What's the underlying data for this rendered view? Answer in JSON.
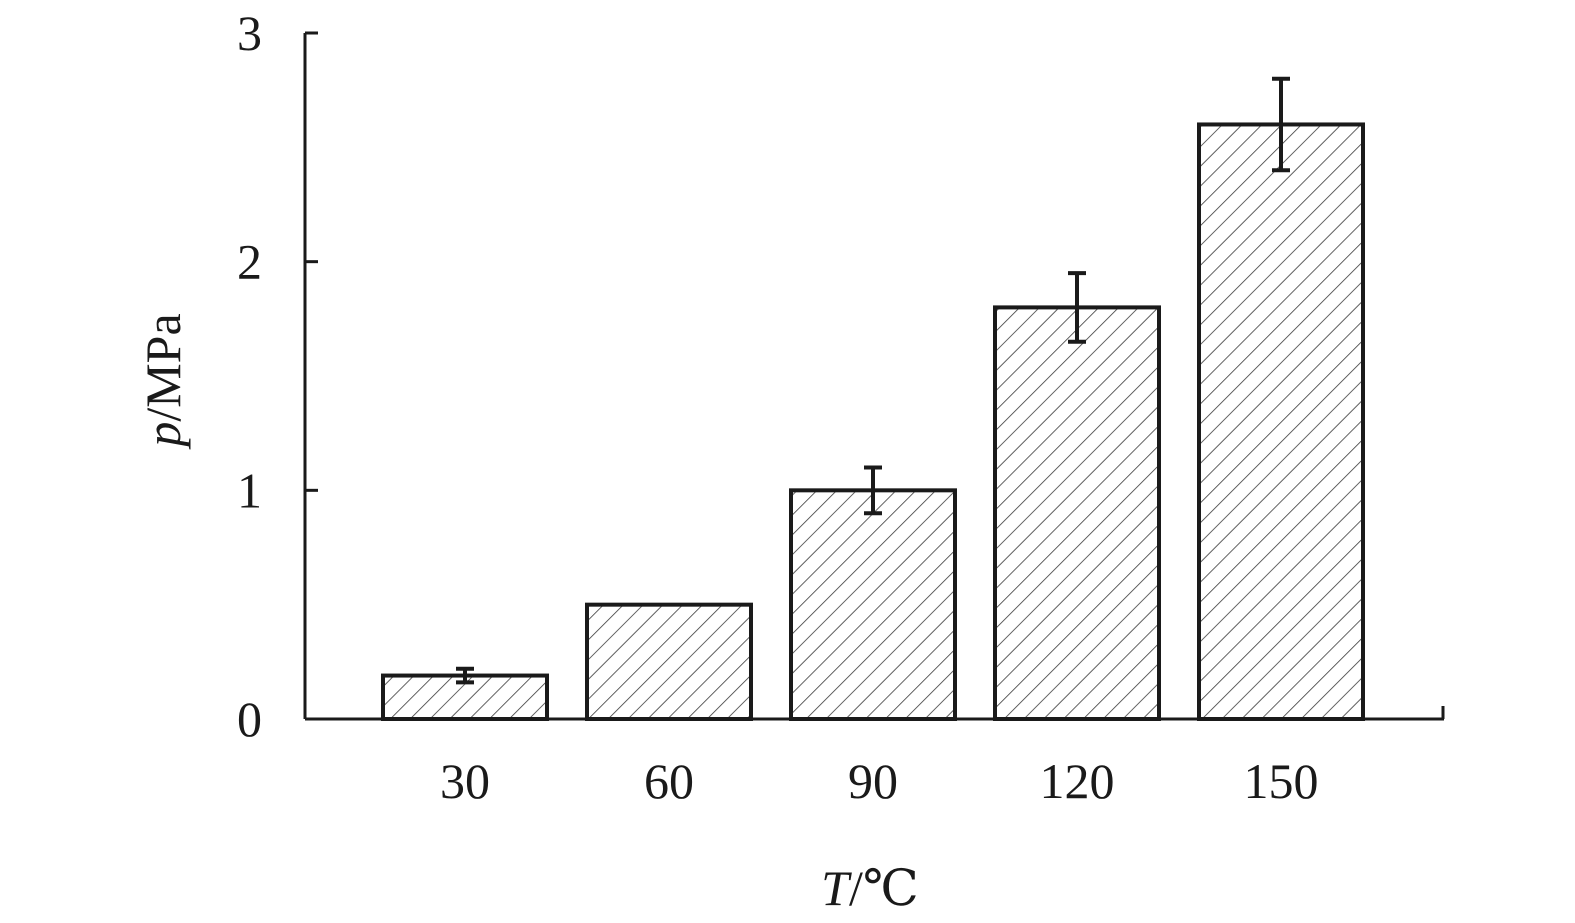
{
  "chart_data": {
    "type": "bar",
    "categories": [
      "30",
      "60",
      "90",
      "120",
      "150"
    ],
    "values": [
      0.19,
      0.5,
      1.0,
      1.8,
      2.6
    ],
    "errors": [
      0.03,
      0.0,
      0.1,
      0.15,
      0.2
    ],
    "xlabel": {
      "symbol": "T",
      "unit": "/℃"
    },
    "ylabel": {
      "symbol": "p",
      "unit": "/MPa"
    },
    "ylim": [
      0,
      3
    ],
    "yticks": [
      "0",
      "1",
      "2",
      "3"
    ],
    "grid": false,
    "legend": "none",
    "bar_fill": "hatched",
    "colors": {
      "bar_edge": "#1a1a1a",
      "hatch": "#3a3a3a",
      "axis": "#1a1a1a",
      "background": "#ffffff"
    }
  }
}
